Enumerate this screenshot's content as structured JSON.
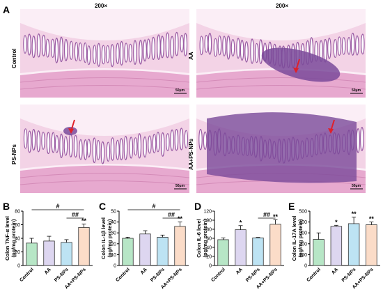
{
  "panel_a": {
    "letter": "A",
    "magnification_left": "200×",
    "magnification_right": "200×",
    "images": [
      {
        "label": "Control",
        "scale": "50μm",
        "arrow": false
      },
      {
        "label": "AA",
        "scale": "50μm",
        "arrow": true
      },
      {
        "label": "PS-NPs",
        "scale": "50μm",
        "arrow": true
      },
      {
        "label": "AA+PS-NPs",
        "scale": "50μm",
        "arrow": true
      }
    ],
    "colors": {
      "tissue": "#e7a9cf",
      "tissue_light": "#f3d3e6",
      "infiltrate": "#7a4a9a",
      "arrow": "#e0202a"
    }
  },
  "chart_data": [
    {
      "panel": "B",
      "type": "bar",
      "ylabel": "Colon TNF-α level (pg/mg protein)",
      "ylim": [
        0,
        80
      ],
      "yticks": [
        0,
        20,
        40,
        60,
        80
      ],
      "categories": [
        "Control",
        "AA",
        "PS-NPs",
        "AA+PS-NPs"
      ],
      "values": [
        33,
        36,
        34,
        56
      ],
      "errors": [
        7,
        7,
        4,
        5
      ],
      "marks": [
        "",
        "",
        "",
        "**"
      ],
      "brackets": [
        {
          "from": 0,
          "to": 3,
          "label": "#"
        },
        {
          "from": 2,
          "to": 3,
          "label": "##"
        }
      ]
    },
    {
      "panel": "C",
      "type": "bar",
      "ylabel": "Colon IL-1β level (pg/mg protein)",
      "ylim": [
        0,
        50
      ],
      "yticks": [
        0,
        10,
        20,
        30,
        40,
        50
      ],
      "categories": [
        "Control",
        "AA",
        "PS-NPs",
        "AA+PS-NPs"
      ],
      "values": [
        25,
        29,
        26,
        36
      ],
      "errors": [
        1,
        3,
        2,
        4
      ],
      "marks": [
        "",
        "",
        "",
        "**"
      ],
      "brackets": [
        {
          "from": 0,
          "to": 3,
          "label": "#"
        },
        {
          "from": 2,
          "to": 3,
          "label": "##"
        }
      ]
    },
    {
      "panel": "D",
      "type": "bar",
      "ylabel": "Colon IL-6 level (pg/mg protein)",
      "ylim": [
        0,
        120
      ],
      "yticks": [
        0,
        20,
        40,
        60,
        80,
        100,
        120
      ],
      "categories": [
        "Control",
        "AA",
        "PS-NPs",
        "AA+PS-NPs"
      ],
      "values": [
        57,
        79,
        61,
        91
      ],
      "errors": [
        4,
        9,
        1,
        10
      ],
      "marks": [
        "",
        "*",
        "",
        "**"
      ],
      "brackets": [
        {
          "from": 2,
          "to": 3,
          "label": "##"
        }
      ]
    },
    {
      "panel": "E",
      "type": "bar",
      "ylabel": "Colon IL-17A level (pg/mg protein)",
      "ylim": [
        0,
        500
      ],
      "yticks": [
        0,
        100,
        200,
        300,
        400,
        500
      ],
      "categories": [
        "Control",
        "AA",
        "PS-NPs",
        "AA+PS-NPs"
      ],
      "values": [
        240,
        360,
        385,
        375
      ],
      "errors": [
        60,
        10,
        60,
        25
      ],
      "marks": [
        "",
        "*",
        "**",
        "**"
      ],
      "brackets": []
    }
  ],
  "bar_colors": [
    "#b7e6c6",
    "#ddd6f0",
    "#bde3f3",
    "#fbdcc8"
  ]
}
